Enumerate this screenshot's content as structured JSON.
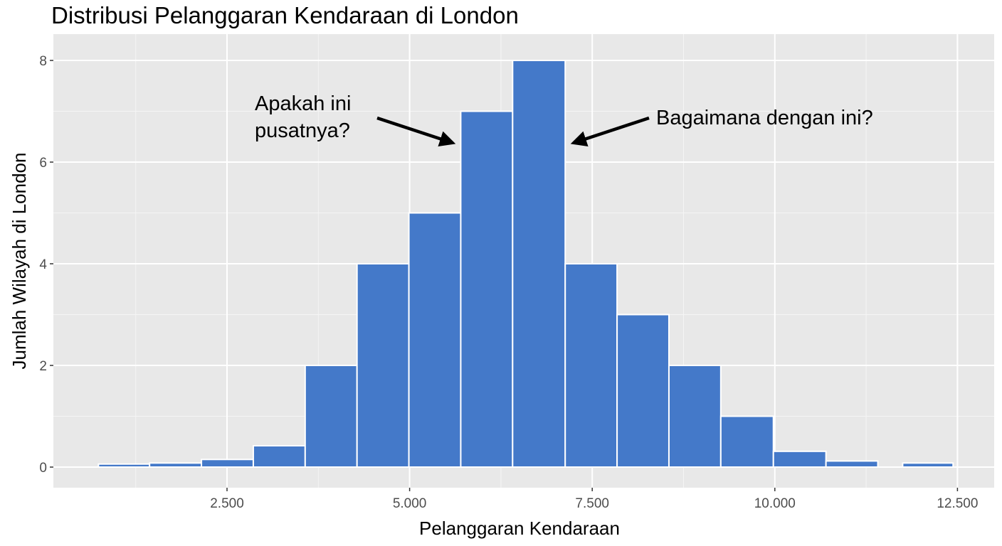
{
  "chart_data": {
    "type": "bar",
    "subtype": "histogram",
    "title": "Distribusi Pelanggaran Kendaraan di London",
    "xlabel": "Pelanggaran Kendaraan",
    "ylabel": "Jumlah Wilayah di London",
    "xlim": [
      0,
      13000
    ],
    "ylim": [
      -0.4,
      8.4
    ],
    "xticks": [
      2500,
      5000,
      7500,
      10000,
      12500
    ],
    "xtick_labels": [
      "2.500",
      "5.000",
      "7.500",
      "10.000",
      "12.500"
    ],
    "yticks": [
      0,
      2,
      4,
      6,
      8
    ],
    "ytick_labels": [
      "0",
      "2",
      "4",
      "6",
      "8"
    ],
    "grid": true,
    "bar_color": "#4479C9",
    "panel_background": "#E8E8E8",
    "bins": [
      {
        "start": 740,
        "end": 1440,
        "count": 0.06
      },
      {
        "start": 1440,
        "end": 2150,
        "count": 0.08
      },
      {
        "start": 2150,
        "end": 2860,
        "count": 0.15
      },
      {
        "start": 2860,
        "end": 3570,
        "count": 0.42
      },
      {
        "start": 3570,
        "end": 4280,
        "count": 2
      },
      {
        "start": 4280,
        "end": 4990,
        "count": 4
      },
      {
        "start": 4990,
        "end": 5700,
        "count": 5
      },
      {
        "start": 5700,
        "end": 6410,
        "count": 7
      },
      {
        "start": 6410,
        "end": 7130,
        "count": 8
      },
      {
        "start": 7130,
        "end": 7840,
        "count": 4
      },
      {
        "start": 7840,
        "end": 8550,
        "count": 3
      },
      {
        "start": 8550,
        "end": 9260,
        "count": 2
      },
      {
        "start": 9260,
        "end": 9980,
        "count": 1
      },
      {
        "start": 9980,
        "end": 10700,
        "count": 0.31
      },
      {
        "start": 10700,
        "end": 11410,
        "count": 0.12
      },
      {
        "start": 11750,
        "end": 12440,
        "count": 0.08
      }
    ],
    "annotations": [
      {
        "lines": [
          "Apakah ini",
          "pusatnya?"
        ],
        "points_to": {
          "x": 5700,
          "y": 6.3
        }
      },
      {
        "lines": [
          "Bagaimana dengan ini?"
        ],
        "points_to": {
          "x": 7130,
          "y": 6.3
        }
      }
    ]
  }
}
